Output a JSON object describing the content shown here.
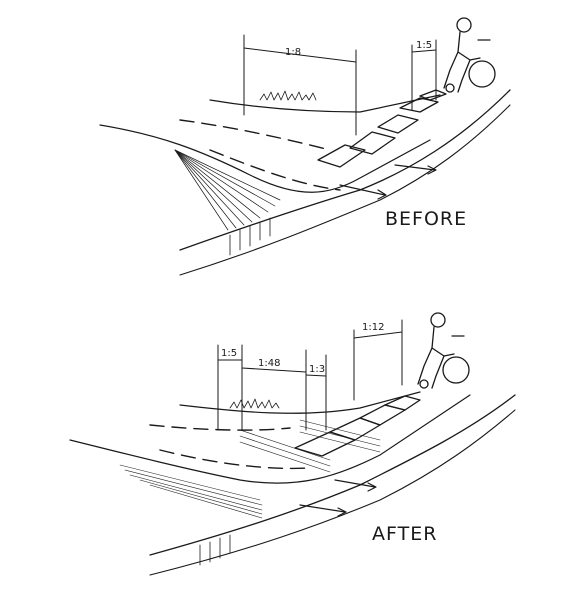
{
  "figure": {
    "before": {
      "caption": "BEFORE",
      "slopes": [
        "1:8",
        "1:5"
      ]
    },
    "after": {
      "caption": "AFTER",
      "slopes": [
        "1:5",
        "1:48",
        "1:3",
        "1:12"
      ]
    }
  },
  "colors": {
    "ink": "#1a1a1a",
    "paper": "#ffffff"
  }
}
